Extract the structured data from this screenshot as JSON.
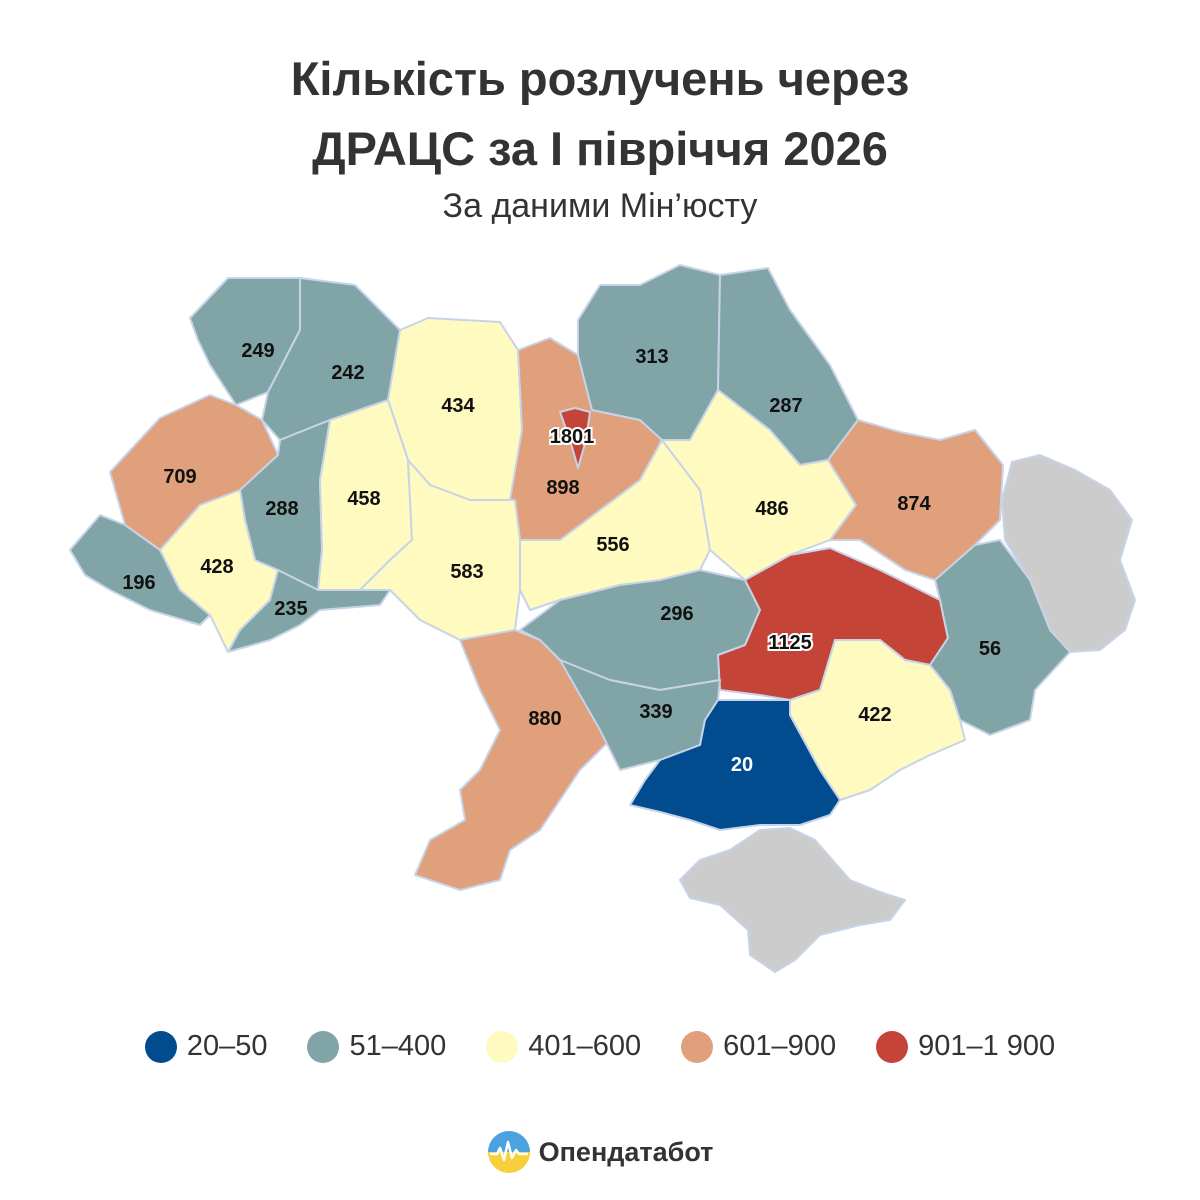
{
  "title_line1": "Кількість розлучень через",
  "title_line2": "ДРАЦС за І півріччя 2026",
  "subtitle": "За даними Мін’юсту",
  "colors": {
    "bin_20_50": "#004c8f",
    "bin_51_400": "#81a5a6",
    "bin_401_600": "#fffac0",
    "bin_601_900": "#e0a07b",
    "bin_901_1900": "#c44537",
    "no_data": "#cccccc",
    "border": "#c7d3e8"
  },
  "legend": [
    {
      "label": "20–50",
      "color": "#004c8f"
    },
    {
      "label": "51–400",
      "color": "#81a5a6"
    },
    {
      "label": "401–600",
      "color": "#fffac0"
    },
    {
      "label": "601–900",
      "color": "#e0a07b"
    },
    {
      "label": "901–1 900",
      "color": "#c44537"
    }
  ],
  "regions": [
    {
      "value": 249,
      "label": "249"
    },
    {
      "value": 242,
      "label": "242"
    },
    {
      "value": 434,
      "label": "434"
    },
    {
      "value": 1801,
      "label": "1801"
    },
    {
      "value": 898,
      "label": "898"
    },
    {
      "value": 313,
      "label": "313"
    },
    {
      "value": 287,
      "label": "287"
    },
    {
      "value": 709,
      "label": "709"
    },
    {
      "value": 288,
      "label": "288"
    },
    {
      "value": 458,
      "label": "458"
    },
    {
      "value": 583,
      "label": "583"
    },
    {
      "value": 556,
      "label": "556"
    },
    {
      "value": 486,
      "label": "486"
    },
    {
      "value": 874,
      "label": "874"
    },
    {
      "value": 196,
      "label": "196"
    },
    {
      "value": 428,
      "label": "428"
    },
    {
      "value": 235,
      "label": "235"
    },
    {
      "value": 296,
      "label": "296"
    },
    {
      "value": 1125,
      "label": "1125"
    },
    {
      "value": 56,
      "label": "56"
    },
    {
      "value": 880,
      "label": "880"
    },
    {
      "value": 339,
      "label": "339"
    },
    {
      "value": 422,
      "label": "422"
    },
    {
      "value": 20,
      "label": "20"
    }
  ],
  "brand": {
    "name": "Опендатабот",
    "logo_icon": "opendatabot-logo-icon"
  }
}
